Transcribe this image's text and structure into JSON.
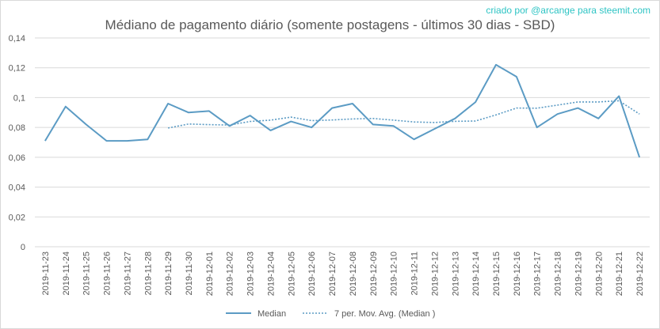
{
  "credit": "criado por @arcange para steemit.com",
  "chart_data": {
    "type": "line",
    "title": "Médiano de pagamento diário (somente postagens - últimos 30 dias - SBD)",
    "xlabel": "",
    "ylabel": "",
    "ylim": [
      0,
      0.14
    ],
    "yticks": [
      0,
      0.02,
      0.04,
      0.06,
      0.08,
      0.1,
      0.12,
      0.14
    ],
    "ytick_labels": [
      "0",
      "0,02",
      "0,04",
      "0,06",
      "0,08",
      "0,1",
      "0,12",
      "0,14"
    ],
    "grid": "horizontal",
    "legend_position": "bottom",
    "x": [
      "2019-11-23",
      "2019-11-24",
      "2019-11-25",
      "2019-11-26",
      "2019-11-27",
      "2019-11-28",
      "2019-11-29",
      "2019-11-30",
      "2019-12-01",
      "2019-12-02",
      "2019-12-03",
      "2019-12-04",
      "2019-12-05",
      "2019-12-06",
      "2019-12-07",
      "2019-12-08",
      "2019-12-09",
      "2019-12-10",
      "2019-12-11",
      "2019-12-12",
      "2019-12-13",
      "2019-12-14",
      "2019-12-15",
      "2019-12-16",
      "2019-12-17",
      "2019-12-18",
      "2019-12-19",
      "2019-12-20",
      "2019-12-21",
      "2019-12-22"
    ],
    "series": [
      {
        "name": "Median",
        "style": "solid",
        "color": "#5b9bc4",
        "values": [
          0.071,
          0.094,
          0.082,
          0.071,
          0.071,
          0.072,
          0.096,
          0.09,
          0.091,
          0.081,
          0.088,
          0.078,
          0.084,
          0.08,
          0.093,
          0.096,
          0.082,
          0.081,
          0.072,
          0.079,
          0.086,
          0.097,
          0.122,
          0.114,
          0.08,
          0.089,
          0.093,
          0.086,
          0.101,
          0.06
        ]
      },
      {
        "name": "7 per. Mov. Avg. (Median )",
        "style": "dotted",
        "color": "#5b9bc4",
        "values": [
          null,
          null,
          null,
          null,
          null,
          null,
          0.0796,
          0.0823,
          0.0819,
          0.0816,
          0.084,
          0.0849,
          0.0869,
          0.0846,
          0.085,
          0.0857,
          0.086,
          0.0849,
          0.0837,
          0.0833,
          0.0841,
          0.0843,
          0.0884,
          0.093,
          0.0929,
          0.095,
          0.0971,
          0.0971,
          0.0979,
          0.089
        ]
      }
    ]
  }
}
